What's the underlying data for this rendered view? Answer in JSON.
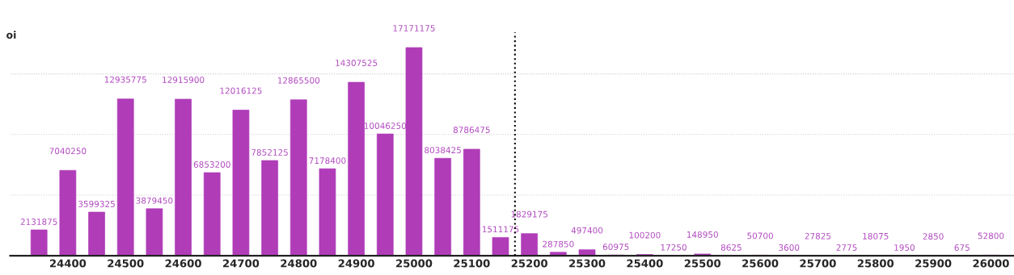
{
  "chart_data": {
    "type": "bar",
    "ylabel": "oi",
    "x": [
      24350,
      24400,
      24450,
      24500,
      24550,
      24600,
      24650,
      24700,
      24750,
      24800,
      24850,
      24900,
      24950,
      25000,
      25050,
      25100,
      25150,
      25200,
      25250,
      25300,
      25350,
      25400,
      25450,
      25500,
      25550,
      25600,
      25650,
      25700,
      25750,
      25800,
      25850,
      25900,
      25950,
      26000
    ],
    "values": [
      2131875,
      7040250,
      3599325,
      12935775,
      3879450,
      12915900,
      6853200,
      12016125,
      7852125,
      12865500,
      7178400,
      14307525,
      10046250,
      17171175,
      8038425,
      8786475,
      1511175,
      1829175,
      287850,
      497400,
      60975,
      100200,
      17250,
      148950,
      8625,
      50700,
      3600,
      27825,
      2775,
      18075,
      1950,
      2850,
      675,
      52800
    ],
    "color": "#b03cb8",
    "data_labels": true,
    "xlim": [
      24300,
      26040
    ],
    "xticks": [
      24400,
      24500,
      24600,
      24700,
      24800,
      24900,
      25000,
      25100,
      25200,
      25300,
      25400,
      25500,
      25600,
      25700,
      25800,
      25900,
      26000
    ],
    "ylim": [
      0,
      18600000
    ],
    "yticks": [
      {
        "value": 0,
        "label": null
      },
      {
        "value": 5000000,
        "label": null
      },
      {
        "value": 10000000,
        "label": null
      },
      {
        "value": 15000000,
        "label": null
      }
    ],
    "grid": "y",
    "tick_labels": "x",
    "ref_lines": [
      {
        "axis": "x",
        "value": 25175,
        "label": null,
        "color": "#000000",
        "line_style": "dotted"
      }
    ]
  }
}
